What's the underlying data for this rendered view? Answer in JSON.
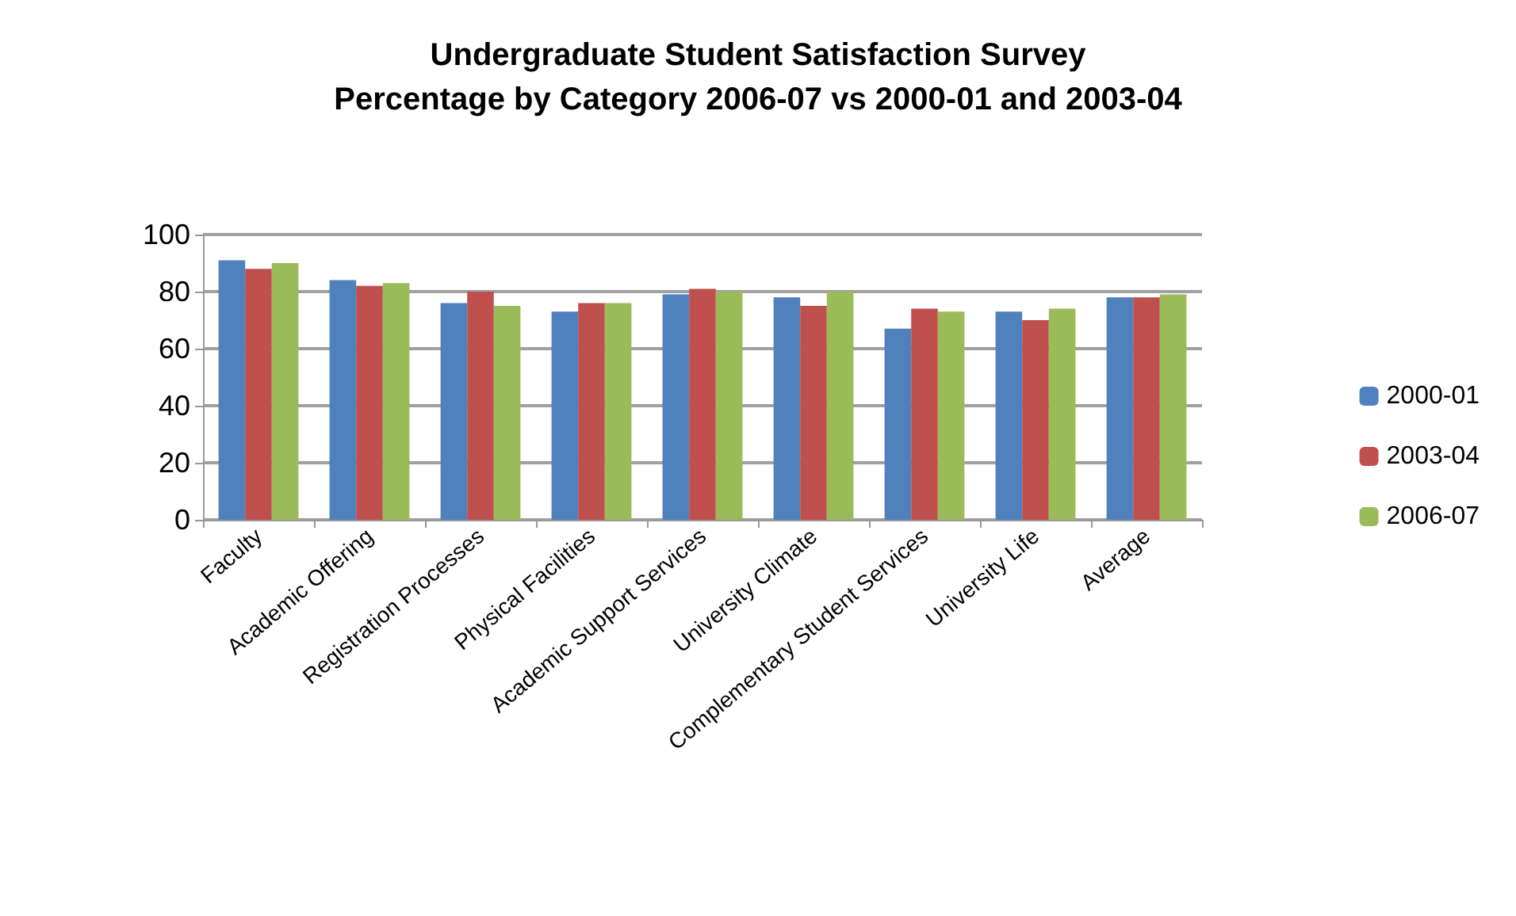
{
  "chart_data": {
    "type": "bar",
    "title": "Undergraduate Student Satisfaction Survey\nPercentage by Category 2006-07 vs 2000-01 and 2003-04",
    "categories": [
      "Faculty",
      "Academic Offering",
      "Registration Processes",
      "Physical Facilities",
      "Academic Support Services",
      "University Climate",
      "Complementary Student Services",
      "University Life",
      "Average"
    ],
    "series": [
      {
        "name": "2000-01",
        "color": "#4f81bd",
        "values": [
          91,
          84,
          76,
          73,
          79,
          78,
          67,
          73,
          78
        ]
      },
      {
        "name": "2003-04",
        "color": "#c0504d",
        "values": [
          88,
          82,
          80,
          76,
          81,
          75,
          74,
          70,
          78
        ]
      },
      {
        "name": "2006-07",
        "color": "#9bbb59",
        "values": [
          90,
          83,
          75,
          76,
          80,
          80,
          73,
          74,
          79
        ]
      }
    ],
    "ylim": [
      0,
      100
    ],
    "yticks": [
      0,
      20,
      40,
      60,
      80,
      100
    ],
    "grid": "y",
    "legend": "right"
  }
}
